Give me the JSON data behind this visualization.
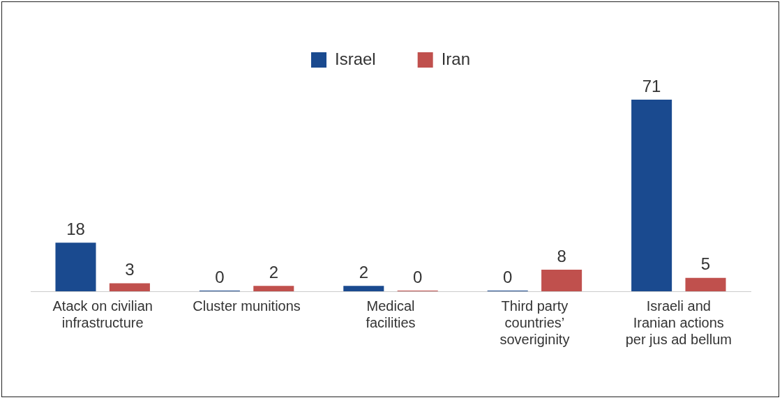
{
  "chart_data": {
    "type": "bar",
    "categories": [
      "Atack on civilian infrastructure",
      "Cluster munitions",
      "Medical facilities",
      "Third party countries’ soveriginity",
      "Israeli and Iranian actions per jus ad bellum"
    ],
    "series": [
      {
        "name": "Israel",
        "color": "#1a4a8f",
        "values": [
          18,
          0,
          2,
          0,
          71
        ]
      },
      {
        "name": "Iran",
        "color": "#c0504d",
        "values": [
          3,
          2,
          0,
          8,
          5
        ]
      }
    ],
    "data_labels": true,
    "legend": "top",
    "grid": false
  }
}
